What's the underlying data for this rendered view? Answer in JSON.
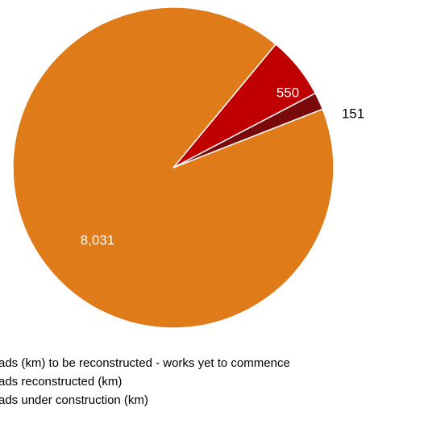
{
  "chart_data": {
    "type": "pie",
    "slices": [
      {
        "name": "Roads (km) to be reconstructed - works yet to commence",
        "value": 8031,
        "label": "8,031",
        "color": "#E07B1A",
        "label_color": "#ffffff"
      },
      {
        "name": "Roads reconstructed (km)",
        "value": 550,
        "label": "550",
        "color": "#C00000",
        "label_color": "#ffffff"
      },
      {
        "name": "Roads under construction (km)",
        "value": 151,
        "label": "151",
        "color": "#7A0A0A",
        "label_color": "#000000"
      }
    ],
    "legend": {
      "placement": "bottom",
      "visible_text": [
        "ads (km) to be reconstructed - works yet to commence",
        "ads reconstructed (km)",
        "ads under construction (km)"
      ]
    }
  }
}
